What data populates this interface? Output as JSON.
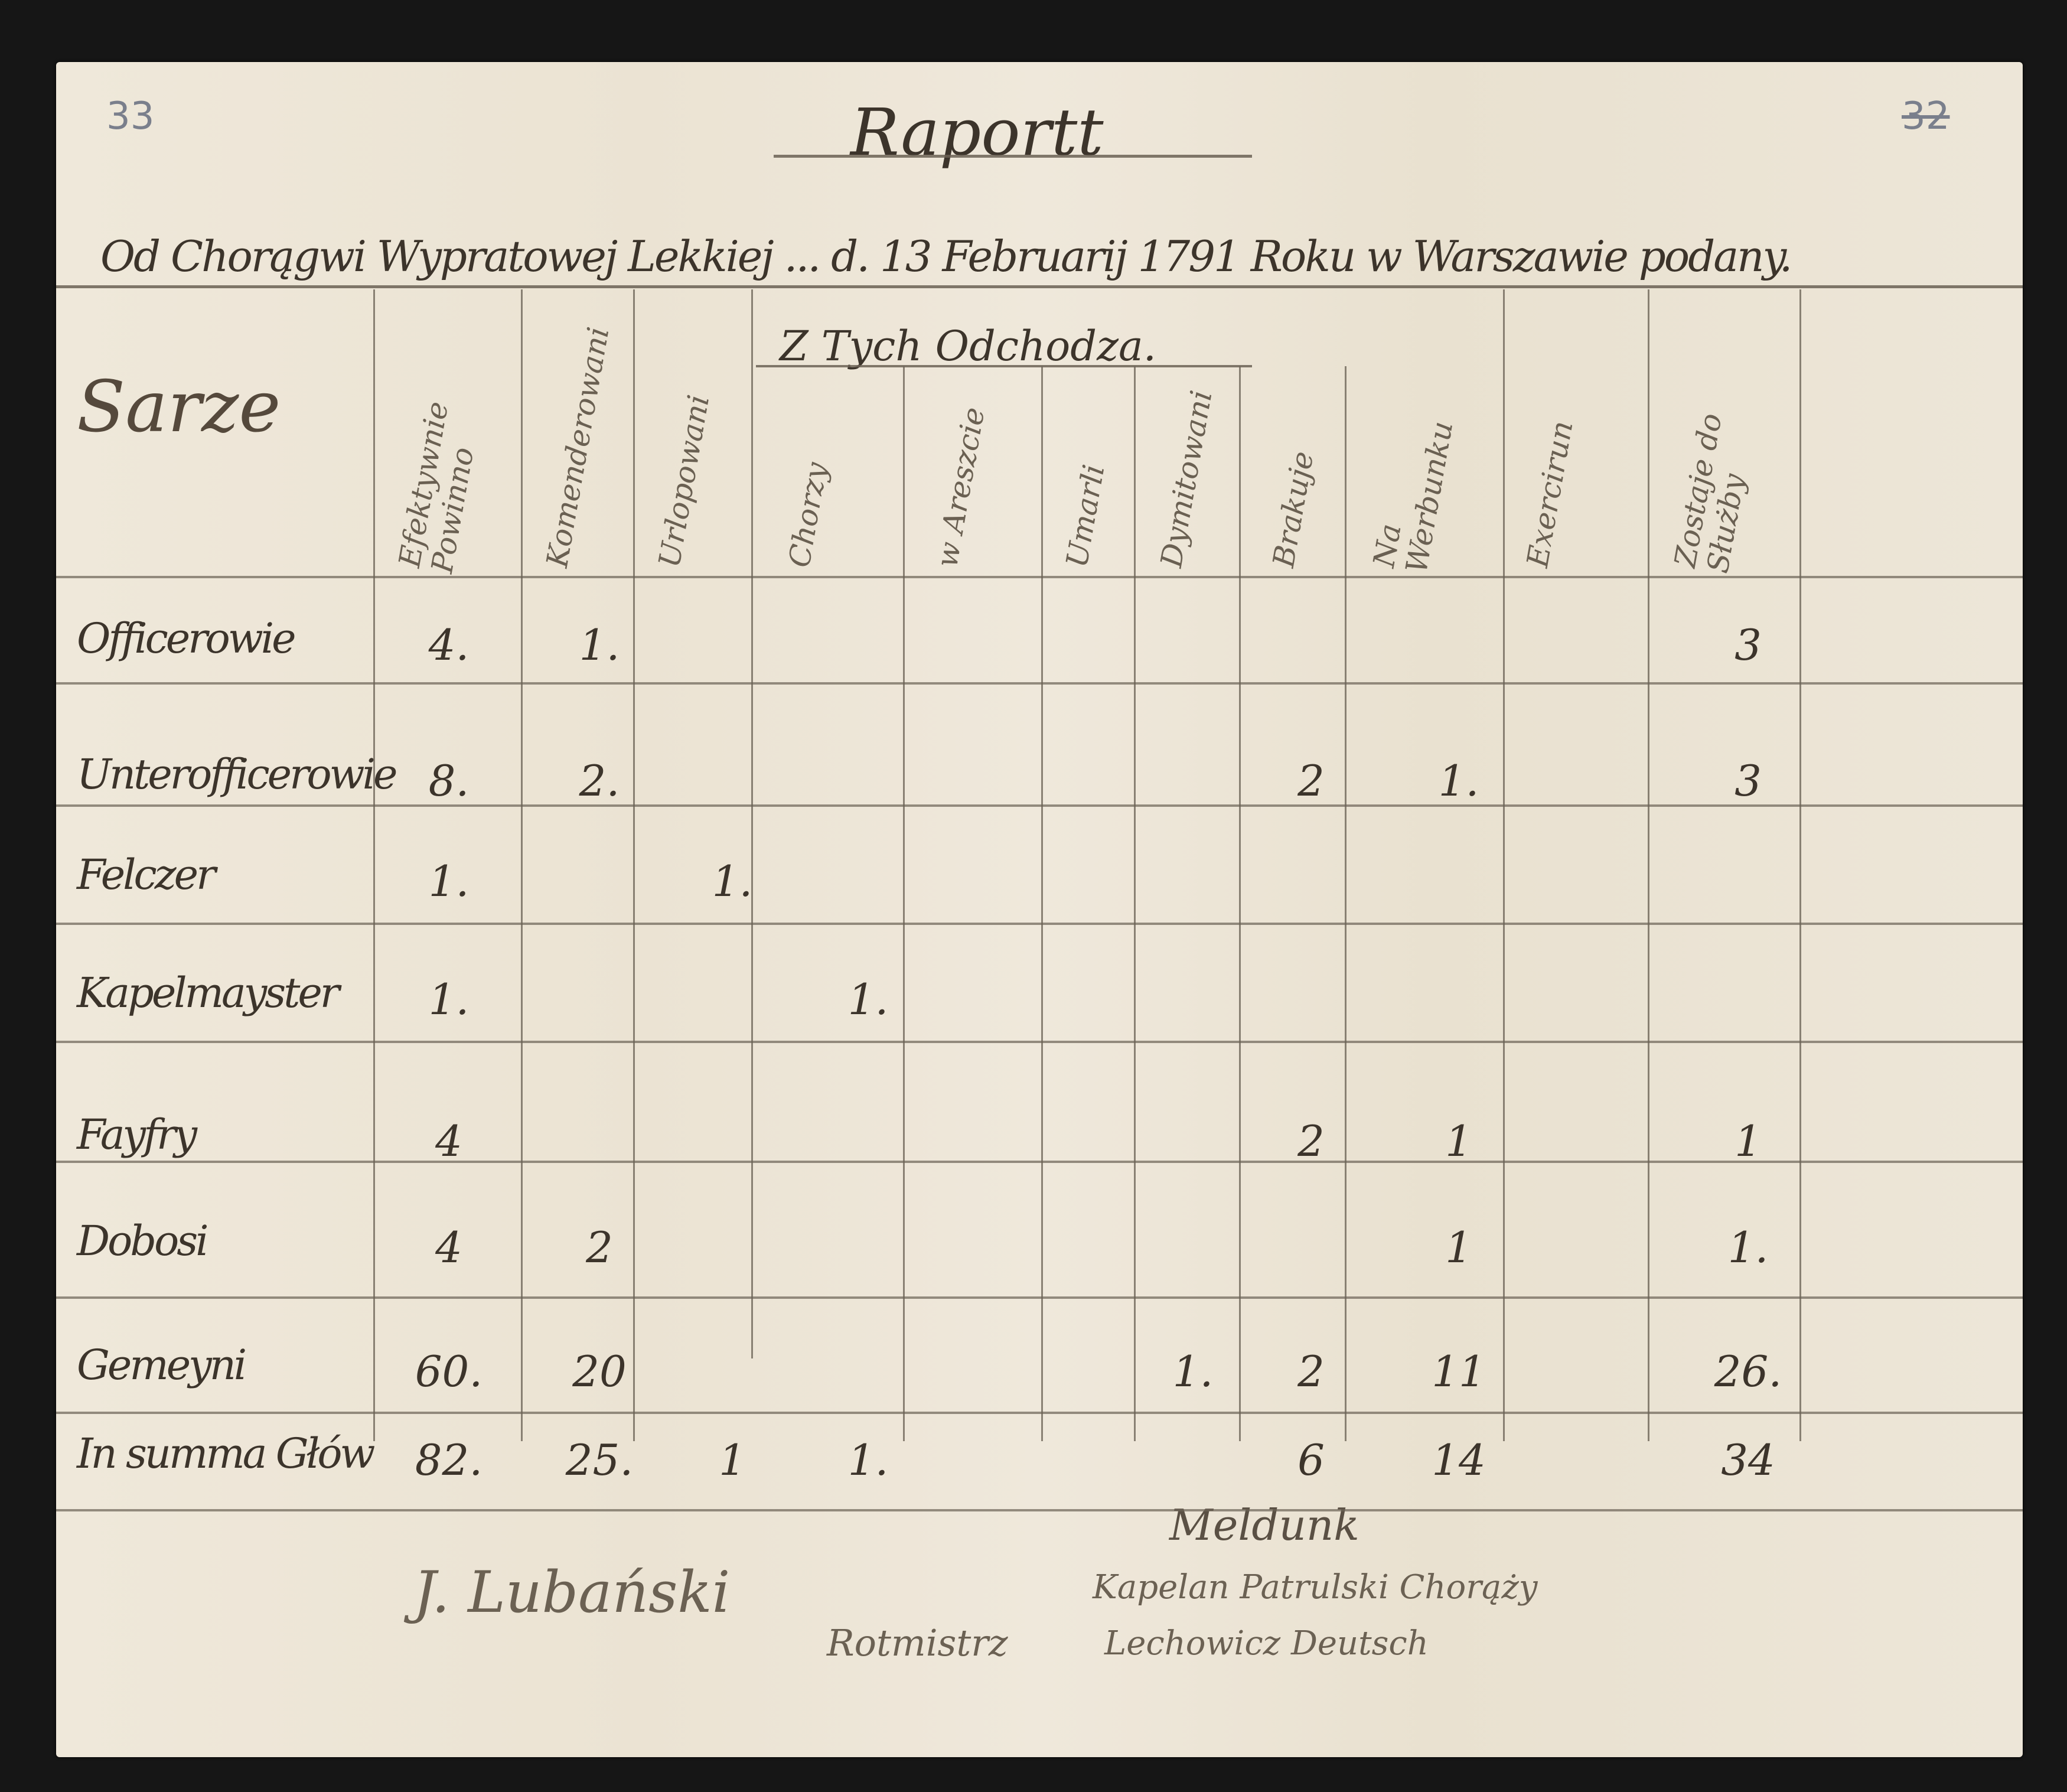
{
  "folio": {
    "left": "33",
    "right": "32"
  },
  "title": "Raportt",
  "heading": "Od Chorągwi Wypratowej Lekkiej ... d. 13 Februarij 1791 Roku w Warszawie podany.",
  "group_header": "Z Tych Odchodza.",
  "columns": [
    "Sarze",
    "Efektywnie Powinno",
    "Komenderowani",
    "Urlopowani",
    "Chorzy",
    "w Areszcie",
    "Umarli",
    "Dymitowani",
    "Brakuje",
    "Na Werbunku",
    "Exercirun",
    "Zostaje do Służby"
  ],
  "rows": [
    {
      "label": "Officerowie",
      "values": [
        "4.",
        "1.",
        "",
        "",
        "",
        "",
        "",
        "",
        "",
        "",
        "3"
      ]
    },
    {
      "label": "Unterofficerowie",
      "values": [
        "8.",
        "2.",
        "",
        "",
        "",
        "",
        "",
        "2",
        "1.",
        "",
        "3"
      ]
    },
    {
      "label": "Felczer",
      "values": [
        "1.",
        "",
        "1.",
        "",
        "",
        "",
        "",
        "",
        "",
        "",
        ""
      ]
    },
    {
      "label": "Kapelmayster",
      "values": [
        "1.",
        "",
        "",
        "1.",
        "",
        "",
        "",
        "",
        "",
        "",
        ""
      ]
    },
    {
      "label": "Fayfry",
      "values": [
        "4",
        "",
        "",
        "",
        "",
        "",
        "",
        "2",
        "1",
        "",
        "1"
      ]
    },
    {
      "label": "Dobosi",
      "values": [
        "4",
        "2",
        "",
        "",
        "",
        "",
        "",
        "",
        "1",
        "",
        "1."
      ]
    },
    {
      "label": "Gemeyni",
      "values": [
        "60.",
        "20",
        "",
        "",
        "",
        "",
        "1.",
        "2",
        "11",
        "",
        "26."
      ]
    },
    {
      "label": "In summa Głów",
      "values": [
        "82.",
        "25.",
        "1",
        "1.",
        "",
        "",
        "",
        "6",
        "14",
        "",
        "34"
      ]
    }
  ],
  "signatures": {
    "left": "J. Lubański",
    "rank": "Rotmistrz",
    "note": "Meldunk",
    "right_1": "Kapelan Patrulski Chorąży",
    "right_2": "Lechowicz Deutsch"
  }
}
